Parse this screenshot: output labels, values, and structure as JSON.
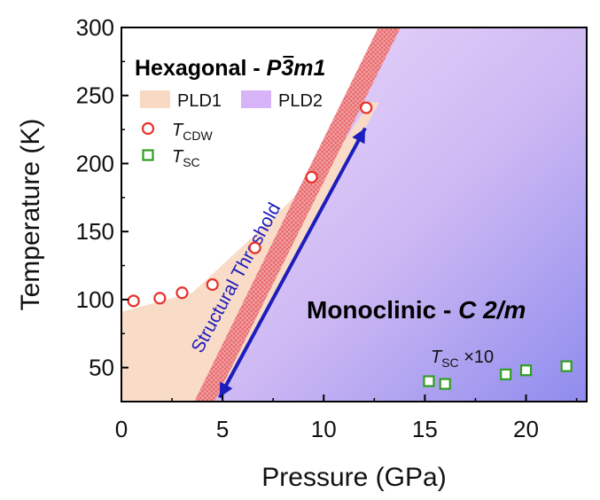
{
  "chart_data": {
    "type": "scatter",
    "xlabel": "Pressure (GPa)",
    "ylabel": "Temperature (K)",
    "xlim": [
      0,
      23
    ],
    "ylim": [
      25,
      300
    ],
    "x_ticks": [
      0,
      5,
      10,
      15,
      20
    ],
    "y_ticks": [
      50,
      100,
      150,
      200,
      250,
      300
    ],
    "phase_labels": {
      "hexagonal_prefix": "Hexagonal - ",
      "hexagonal_group": "P3m1",
      "monoclinic_prefix": "Monoclinic - ",
      "monoclinic_group": "C 2/m"
    },
    "threshold_label": "Structural Threshold",
    "legend": [
      {
        "label": "PLD1",
        "color": "#f9d9c4",
        "kind": "area"
      },
      {
        "label": "PLD2",
        "color": "#d7b3f7",
        "kind": "area"
      },
      {
        "label": "T",
        "sub": "CDW",
        "color": "#e8312a",
        "kind": "circle"
      },
      {
        "label": "T",
        "sub": "SC",
        "color": "#2f9e1f",
        "kind": "square"
      }
    ],
    "sc_annotation": {
      "label": "T",
      "sub": "SC",
      "suffix": " ×10"
    },
    "series": [
      {
        "name": "T_CDW",
        "x": [
          0.6,
          1.9,
          3.0,
          4.5,
          6.6,
          9.4,
          12.1
        ],
        "y": [
          99,
          101,
          105,
          111,
          138,
          190,
          241
        ]
      },
      {
        "name": "T_SC ×10",
        "x": [
          15.2,
          16.0,
          19.0,
          20.0,
          22.0
        ],
        "y": [
          40,
          38,
          45,
          48,
          51
        ]
      }
    ],
    "regions": {
      "PLD1_boundary": [
        [
          0,
          91
        ],
        [
          3.5,
          105
        ],
        [
          7.5,
          160
        ],
        [
          10.5,
          205
        ],
        [
          12.3,
          245
        ]
      ],
      "threshold_band": {
        "low": [
          [
            3.6,
            25
          ],
          [
            12.7,
            300
          ]
        ],
        "high": [
          [
            4.6,
            25
          ],
          [
            13.8,
            300
          ]
        ]
      }
    }
  }
}
